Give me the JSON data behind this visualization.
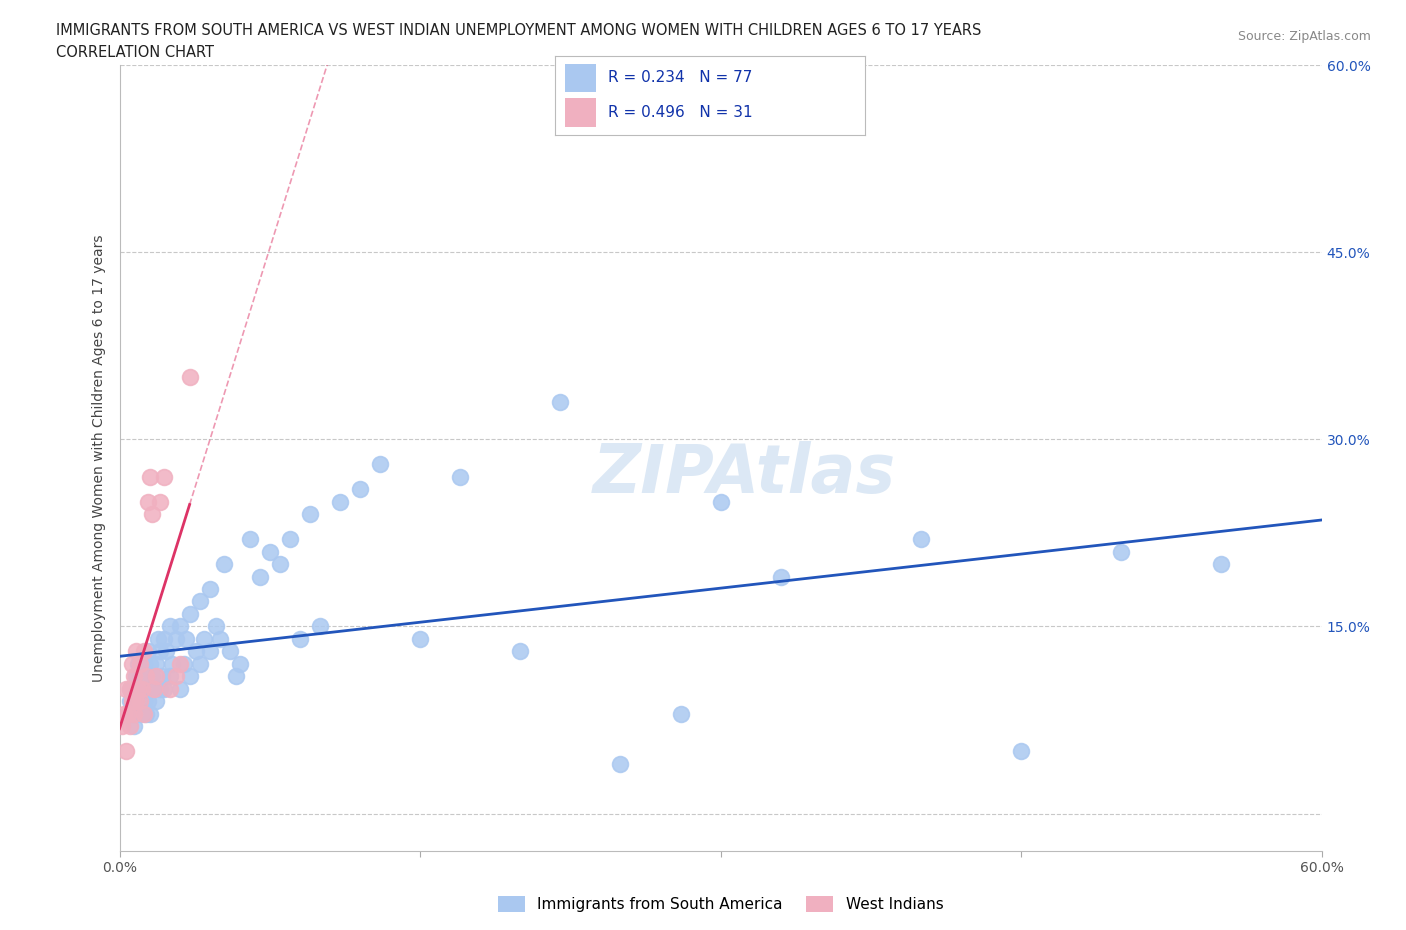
{
  "title_line1": "IMMIGRANTS FROM SOUTH AMERICA VS WEST INDIAN UNEMPLOYMENT AMONG WOMEN WITH CHILDREN AGES 6 TO 17 YEARS",
  "title_line2": "CORRELATION CHART",
  "source": "Source: ZipAtlas.com",
  "ylabel": "Unemployment Among Women with Children Ages 6 to 17 years",
  "xlim": [
    0.0,
    0.6
  ],
  "ylim": [
    -0.03,
    0.6
  ],
  "xticks": [
    0.0,
    0.15,
    0.3,
    0.45,
    0.6
  ],
  "xticklabels": [
    "0.0%",
    "",
    "",
    "",
    "60.0%"
  ],
  "right_yticks": [
    0.15,
    0.3,
    0.45,
    0.6
  ],
  "right_yticklabels": [
    "15.0%",
    "30.0%",
    "45.0%",
    "60.0%"
  ],
  "grid_color": "#c8c8c8",
  "background_color": "#ffffff",
  "blue_color": "#aac8f0",
  "pink_color": "#f0b0c0",
  "blue_line_color": "#2255bb",
  "pink_line_color": "#dd3366",
  "R_blue": 0.234,
  "N_blue": 77,
  "R_pink": 0.496,
  "N_pink": 31,
  "legend_label_blue": "Immigrants from South America",
  "legend_label_pink": "West Indians",
  "blue_scatter_x": [
    0.005,
    0.005,
    0.005,
    0.007,
    0.007,
    0.008,
    0.008,
    0.009,
    0.01,
    0.01,
    0.01,
    0.01,
    0.012,
    0.012,
    0.013,
    0.013,
    0.014,
    0.014,
    0.015,
    0.015,
    0.015,
    0.016,
    0.017,
    0.018,
    0.018,
    0.019,
    0.02,
    0.02,
    0.021,
    0.022,
    0.022,
    0.023,
    0.025,
    0.025,
    0.026,
    0.028,
    0.03,
    0.03,
    0.032,
    0.033,
    0.035,
    0.035,
    0.038,
    0.04,
    0.04,
    0.042,
    0.045,
    0.045,
    0.048,
    0.05,
    0.052,
    0.055,
    0.058,
    0.06,
    0.065,
    0.07,
    0.075,
    0.08,
    0.085,
    0.09,
    0.095,
    0.1,
    0.11,
    0.12,
    0.13,
    0.15,
    0.17,
    0.2,
    0.22,
    0.25,
    0.28,
    0.3,
    0.33,
    0.4,
    0.45,
    0.5,
    0.55
  ],
  "blue_scatter_y": [
    0.08,
    0.09,
    0.1,
    0.07,
    0.1,
    0.09,
    0.11,
    0.12,
    0.08,
    0.09,
    0.1,
    0.11,
    0.09,
    0.12,
    0.08,
    0.11,
    0.09,
    0.13,
    0.08,
    0.1,
    0.12,
    0.11,
    0.1,
    0.09,
    0.12,
    0.14,
    0.1,
    0.13,
    0.11,
    0.1,
    0.14,
    0.13,
    0.11,
    0.15,
    0.12,
    0.14,
    0.1,
    0.15,
    0.12,
    0.14,
    0.11,
    0.16,
    0.13,
    0.12,
    0.17,
    0.14,
    0.13,
    0.18,
    0.15,
    0.14,
    0.2,
    0.13,
    0.11,
    0.12,
    0.22,
    0.19,
    0.21,
    0.2,
    0.22,
    0.14,
    0.24,
    0.15,
    0.25,
    0.26,
    0.28,
    0.14,
    0.27,
    0.13,
    0.33,
    0.04,
    0.08,
    0.25,
    0.19,
    0.22,
    0.05,
    0.21,
    0.2
  ],
  "pink_scatter_x": [
    0.001,
    0.002,
    0.003,
    0.003,
    0.004,
    0.005,
    0.005,
    0.006,
    0.006,
    0.007,
    0.007,
    0.008,
    0.008,
    0.009,
    0.01,
    0.01,
    0.011,
    0.012,
    0.012,
    0.013,
    0.014,
    0.015,
    0.016,
    0.017,
    0.018,
    0.02,
    0.022,
    0.025,
    0.028,
    0.03,
    0.035
  ],
  "pink_scatter_y": [
    0.07,
    0.08,
    0.05,
    0.1,
    0.08,
    0.07,
    0.1,
    0.09,
    0.12,
    0.08,
    0.11,
    0.09,
    0.13,
    0.1,
    0.09,
    0.12,
    0.1,
    0.08,
    0.13,
    0.11,
    0.25,
    0.27,
    0.24,
    0.1,
    0.11,
    0.25,
    0.27,
    0.1,
    0.11,
    0.12,
    0.35
  ]
}
